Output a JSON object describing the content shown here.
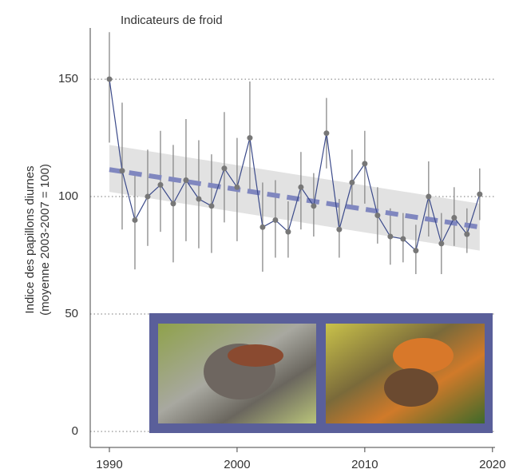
{
  "chart_data": {
    "type": "line",
    "title": "Indicateurs de froid",
    "y_label": [
      "Indice des papillons diurnes",
      "(moyenne 2003-2007 = 100)"
    ],
    "x": [
      1990,
      1991,
      1992,
      1993,
      1994,
      1995,
      1996,
      1997,
      1998,
      1999,
      2000,
      2001,
      2002,
      2003,
      2004,
      2005,
      2006,
      2007,
      2008,
      2009,
      2010,
      2011,
      2012,
      2013,
      2014,
      2015,
      2016,
      2017,
      2018,
      2019
    ],
    "series": [
      {
        "color": "#3b4a8a",
        "point_color": "#777777",
        "error_color": "#888888",
        "values": [
          150,
          111,
          90,
          100,
          105,
          97,
          107,
          99,
          96,
          112,
          104,
          125,
          87,
          90,
          85,
          104,
          96,
          127,
          86,
          106,
          114,
          92,
          83,
          82,
          77,
          100,
          80,
          91,
          84,
          101
        ],
        "low": [
          123,
          86,
          69,
          79,
          85,
          72,
          81,
          78,
          76,
          89,
          81,
          103,
          68,
          74,
          74,
          86,
          83,
          112,
          74,
          95,
          97,
          80,
          71,
          72,
          67,
          83,
          67,
          79,
          76,
          90
        ],
        "high": [
          170,
          140,
          110,
          120,
          128,
          122,
          133,
          124,
          118,
          136,
          125,
          149,
          106,
          107,
          98,
          119,
          110,
          142,
          99,
          120,
          128,
          104,
          95,
          93,
          88,
          115,
          93,
          104,
          95,
          112
        ]
      }
    ],
    "trend": {
      "x": [
        1990,
        2019
      ],
      "values": [
        111.5,
        87
      ],
      "low": [
        102,
        77
      ],
      "high": [
        122,
        97
      ],
      "color": "#8087bf",
      "band_color": "#e2e2e2"
    },
    "xlim": [
      1988.5,
      2020.2
    ],
    "xticks": [
      1990,
      2000,
      2010,
      2020
    ],
    "ylim": [
      -6.8,
      171.8
    ],
    "yticks": [
      0,
      50,
      100,
      150
    ],
    "grid": true
  }
}
